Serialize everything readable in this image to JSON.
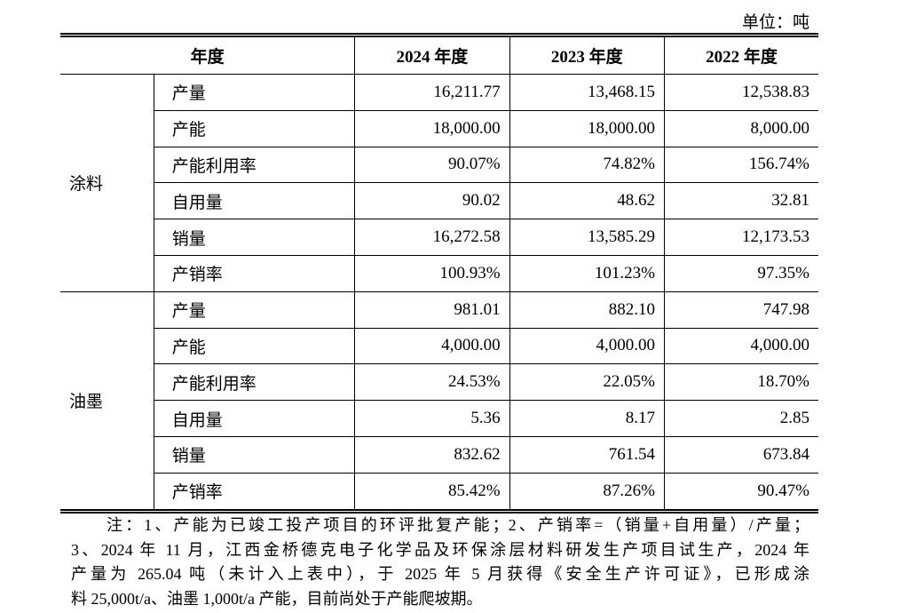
{
  "unit": "单位：吨",
  "table": {
    "header": [
      "年度",
      "2024 年度",
      "2023 年度",
      "2022 年度"
    ],
    "groups": [
      {
        "name": "涂料",
        "rows": [
          [
            "产量",
            "16,211.77",
            "13,468.15",
            "12,538.83"
          ],
          [
            "产能",
            "18,000.00",
            "18,000.00",
            "8,000.00"
          ],
          [
            "产能利用率",
            "90.07%",
            "74.82%",
            "156.74%"
          ],
          [
            "自用量",
            "90.02",
            "48.62",
            "32.81"
          ],
          [
            "销量",
            "16,272.58",
            "13,585.29",
            "12,173.53"
          ],
          [
            "产销率",
            "100.93%",
            "101.23%",
            "97.35%"
          ]
        ]
      },
      {
        "name": "油墨",
        "rows": [
          [
            "产量",
            "981.01",
            "882.10",
            "747.98"
          ],
          [
            "产能",
            "4,000.00",
            "4,000.00",
            "4,000.00"
          ],
          [
            "产能利用率",
            "24.53%",
            "22.05%",
            "18.70%"
          ],
          [
            "自用量",
            "5.36",
            "8.17",
            "2.85"
          ],
          [
            "销量",
            "832.62",
            "761.54",
            "673.84"
          ],
          [
            "产销率",
            "85.42%",
            "87.26%",
            "90.47%"
          ]
        ]
      }
    ]
  },
  "note": {
    "lines": [
      "注：1、产能为已竣工投产项目的环评批复产能；2、产销率=（销量+自用量）/产量；",
      "3、2024 年 11 月，江西金桥德克电子化学品及环保涂层材料研发生产项目试生产，2024 年",
      "产量为 265.04 吨（未计入上表中），于 2025 年 5 月获得《安全生产许可证》，已形成涂",
      "料 25,000t/a、油墨 1,000t/a 产能，目前尚处于产能爬坡期。"
    ]
  }
}
